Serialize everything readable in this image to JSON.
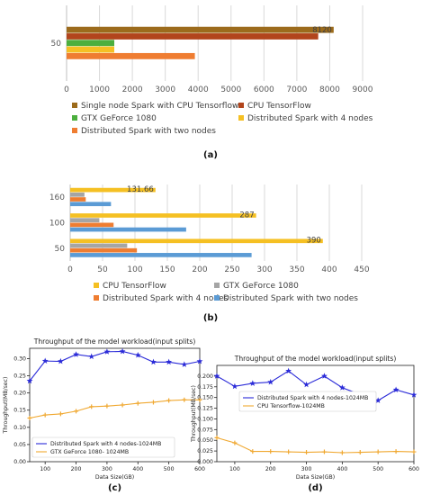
{
  "chart_data": [
    {
      "type": "bar",
      "orientation": "horizontal",
      "panel_label": "(a)",
      "categories": [
        "50"
      ],
      "series": [
        {
          "name": "Single node Spark with CPU Tensorflow",
          "values": [
            8120
          ],
          "color": "#9c6b1c",
          "data_label": "8120"
        },
        {
          "name": "CPU TensorFlow",
          "values": [
            7650
          ],
          "color": "#b2451c"
        },
        {
          "name": "GTX GeForce 1080",
          "values": [
            1450
          ],
          "color": "#4caf3e"
        },
        {
          "name": "Distributed Spark with 4 nodes",
          "values": [
            1450
          ],
          "color": "#f5c023"
        },
        {
          "name": "Distributed Spark with two nodes",
          "values": [
            3900
          ],
          "color": "#ef7d31"
        }
      ],
      "xlim": [
        0,
        9000
      ],
      "xticks": [
        "0",
        "1000",
        "2000",
        "3000",
        "4000",
        "5000",
        "6000",
        "7000",
        "8000",
        "9000"
      ],
      "grid": true,
      "legend": "bottom"
    },
    {
      "type": "bar",
      "orientation": "horizontal",
      "panel_label": "(b)",
      "categories": [
        "160",
        "100",
        "50"
      ],
      "series": [
        {
          "name": "CPU TensorFlow",
          "values": [
            131.66,
            287,
            390
          ],
          "color": "#f5c023",
          "data_labels": [
            "131.66",
            "287",
            "390"
          ]
        },
        {
          "name": "GTX GeForce 1080",
          "values": [
            22,
            45,
            88
          ],
          "color": "#a5a5a5"
        },
        {
          "name": "Distributed Spark with 4 nodes",
          "values": [
            24,
            67,
            103
          ],
          "color": "#ef7d31"
        },
        {
          "name": "Distributed Spark with two nodes",
          "values": [
            63,
            179,
            280
          ],
          "color": "#5b9bd5"
        }
      ],
      "xlim": [
        0,
        450
      ],
      "xticks": [
        "0",
        "50",
        "100",
        "150",
        "200",
        "250",
        "300",
        "350",
        "400",
        "450"
      ],
      "grid": true,
      "legend": "bottom"
    },
    {
      "type": "line",
      "panel_label": "(c)",
      "title": "Throughput of the model workload(input splits)",
      "xlabel": "Data Size(GB)",
      "ylabel": "Throughput(MB/sec)",
      "x": [
        50,
        100,
        150,
        200,
        250,
        300,
        350,
        400,
        450,
        500,
        550,
        600
      ],
      "series": [
        {
          "name": "Distributed Spark with 4 nodes-1024MB",
          "values": [
            0.235,
            0.293,
            0.292,
            0.312,
            0.306,
            0.32,
            0.321,
            0.31,
            0.29,
            0.29,
            0.283,
            0.292
          ],
          "color": "#2b2bd8",
          "marker": "star"
        },
        {
          "name": "GTX GeForce 1080- 1024MB",
          "values": [
            0.127,
            0.136,
            0.139,
            0.147,
            0.16,
            0.162,
            0.165,
            0.17,
            0.173,
            0.178,
            0.18,
            0.18
          ],
          "color": "#f0a830",
          "marker": "plus"
        }
      ],
      "xlim": [
        50,
        600
      ],
      "ylim": [
        0.0,
        0.33
      ],
      "xticks": [
        "100",
        "200",
        "300",
        "400",
        "500",
        "600"
      ],
      "yticks": [
        "0.00",
        "0.05",
        "0.10",
        "0.15",
        "0.20",
        "0.25",
        "0.30"
      ],
      "legend": "bottom-left"
    },
    {
      "type": "line",
      "panel_label": "(d)",
      "title": "Throughput of the model workload(input splits)",
      "xlabel": "Data Size(GB)",
      "ylabel": "Throughput(MB/sec)",
      "x": [
        50,
        100,
        150,
        200,
        250,
        300,
        350,
        400,
        450,
        500,
        550,
        600
      ],
      "series": [
        {
          "name": "Distributed Spark with 4 nodes-1024MB",
          "values": [
            0.2,
            0.176,
            0.183,
            0.186,
            0.212,
            0.18,
            0.2,
            0.173,
            0.157,
            0.143,
            0.168,
            0.156
          ],
          "color": "#2b2bd8",
          "marker": "star"
        },
        {
          "name": "CPU Tensorflow-1024MB",
          "values": [
            0.056,
            0.044,
            0.024,
            0.024,
            0.023,
            0.022,
            0.023,
            0.021,
            0.022,
            0.023,
            0.024,
            0.023
          ],
          "color": "#f0a830",
          "marker": "plus"
        }
      ],
      "xlim": [
        50,
        600
      ],
      "ylim": [
        0.0,
        0.225
      ],
      "xticks": [
        "100",
        "200",
        "300",
        "400",
        "500",
        "600"
      ],
      "yticks": [
        "0.000",
        "0.025",
        "0.050",
        "0.075",
        "0.100",
        "0.125",
        "0.150",
        "0.175",
        "0.200"
      ],
      "legend": "top-left"
    }
  ]
}
